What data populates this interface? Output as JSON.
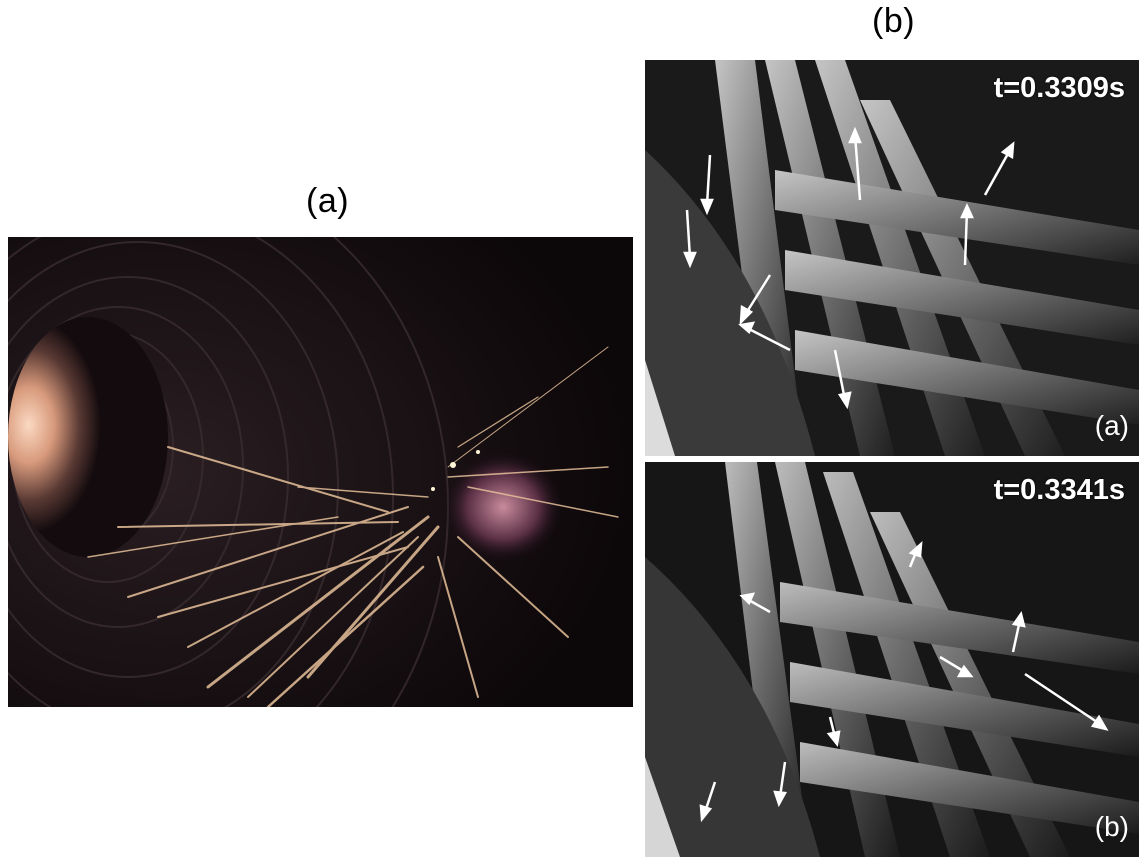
{
  "figure": {
    "panel_a_label": "(a)",
    "panel_b_label": "(b)"
  },
  "panel_b": {
    "top": {
      "time": "t=0.3309s",
      "sub_label": "(a)"
    },
    "bottom": {
      "time": "t=0.3341s",
      "sub_label": "(b)"
    }
  },
  "colors": {
    "background": "#ffffff",
    "tunnel_glow": "#f2b89a",
    "spark": "#e8c49a",
    "annotation_arrow": "#ffffff"
  }
}
